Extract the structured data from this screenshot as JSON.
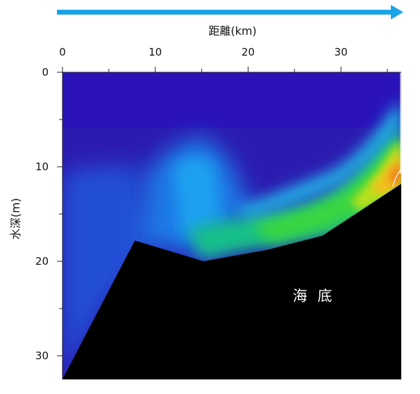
{
  "chart_data": {
    "type": "heatmap",
    "xlabel": "距離(km)",
    "ylabel": "水深(m)",
    "x_ticks": [
      0,
      10,
      20,
      30
    ],
    "y_ticks": [
      0,
      10,
      20,
      30
    ],
    "xlim": [
      0,
      36.5
    ],
    "ylim": [
      0,
      32.5
    ],
    "x_axis_position": "top",
    "y_axis_inverted": true,
    "direction_arrow": "left-to-right",
    "seabed_label": "海 底",
    "seabed_profile": [
      {
        "x": 0,
        "y": 32.5
      },
      {
        "x": 7.8,
        "y": 17.8
      },
      {
        "x": 15.2,
        "y": 20.0
      },
      {
        "x": 22.0,
        "y": 18.8
      },
      {
        "x": 28.0,
        "y": 17.3
      },
      {
        "x": 36.5,
        "y": 11.8
      }
    ],
    "colors": {
      "arrow": "#1aa3e8",
      "background_low": "#2c1bb0",
      "seabed": "#000000"
    }
  }
}
